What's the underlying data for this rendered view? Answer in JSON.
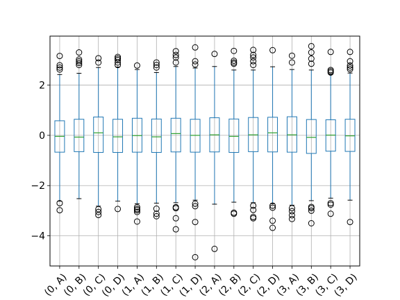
{
  "chart_data": {
    "type": "boxplot",
    "grid": true,
    "ylim": [
      -5.2,
      3.95
    ],
    "yticks": [
      -4,
      -2,
      0,
      2
    ],
    "ytick_labels": [
      "−4",
      "−2",
      "0",
      "2"
    ],
    "colors": {
      "box": "#1f77b4",
      "median": "#2ca02c",
      "grid": "#b0b0b0",
      "flier": "#000000"
    },
    "categories": [
      "(0, A)",
      "(0, B)",
      "(0, C)",
      "(0, D)",
      "(1, A)",
      "(1, B)",
      "(1, C)",
      "(1, D)",
      "(2, A)",
      "(2, B)",
      "(2, C)",
      "(2, D)",
      "(3, A)",
      "(3, B)",
      "(3, C)",
      "(3, D)"
    ],
    "boxes": [
      {
        "q1": -0.67,
        "median": -0.04,
        "q3": 0.58,
        "whisker_low": -2.62,
        "whisker_high": 2.42,
        "fliers": [
          3.16,
          2.79,
          2.7,
          2.62,
          -2.7,
          -2.98
        ]
      },
      {
        "q1": -0.65,
        "median": -0.07,
        "q3": 0.64,
        "whisker_low": -2.52,
        "whisker_high": 2.47,
        "fliers": [
          3.3,
          3.02,
          2.95,
          2.88,
          2.8
        ]
      },
      {
        "q1": -0.68,
        "median": 0.1,
        "q3": 0.73,
        "whisker_low": -2.82,
        "whisker_high": 2.7,
        "fliers": [
          3.07,
          2.9,
          -2.94,
          -3.05,
          -3.17
        ]
      },
      {
        "q1": -0.68,
        "median": -0.06,
        "q3": 0.64,
        "whisker_low": -2.62,
        "whisker_high": 2.72,
        "fliers": [
          3.12,
          3.06,
          3.0,
          2.9,
          2.8,
          -2.93
        ]
      },
      {
        "q1": -0.67,
        "median": -0.01,
        "q3": 0.68,
        "whisker_low": -2.72,
        "whisker_high": 2.62,
        "fliers": [
          2.78,
          -2.86,
          -2.93,
          -2.98,
          -3.05,
          -3.43
        ]
      },
      {
        "q1": -0.68,
        "median": -0.06,
        "q3": 0.65,
        "whisker_low": -2.7,
        "whisker_high": 2.5,
        "fliers": [
          2.9,
          2.8,
          2.7,
          -2.92,
          -3.12,
          -3.22
        ]
      },
      {
        "q1": -0.66,
        "median": 0.07,
        "q3": 0.68,
        "whisker_low": -2.68,
        "whisker_high": 2.74,
        "fliers": [
          3.35,
          3.2,
          3.1,
          2.9,
          -2.86,
          -2.9,
          -3.3,
          -3.74
        ]
      },
      {
        "q1": -0.67,
        "median": 0.0,
        "q3": 0.64,
        "whisker_low": -2.58,
        "whisker_high": 2.68,
        "fliers": [
          3.5,
          2.95,
          2.82,
          -2.72,
          -2.82,
          -3.45,
          -4.85
        ]
      },
      {
        "q1": -0.66,
        "median": 0.02,
        "q3": 0.7,
        "whisker_low": -2.74,
        "whisker_high": 2.74,
        "fliers": [
          3.24,
          -4.52
        ]
      },
      {
        "q1": -0.68,
        "median": -0.04,
        "q3": 0.65,
        "whisker_low": -2.66,
        "whisker_high": 2.6,
        "fliers": [
          3.36,
          2.97,
          2.9,
          2.85,
          -3.08,
          -3.12
        ]
      },
      {
        "q1": -0.65,
        "median": 0.02,
        "q3": 0.71,
        "whisker_low": -2.68,
        "whisker_high": 2.6,
        "fliers": [
          3.4,
          3.2,
          3.1,
          2.95,
          2.8,
          -2.8,
          -2.97,
          -3.25,
          -3.3
        ]
      },
      {
        "q1": -0.66,
        "median": 0.1,
        "q3": 0.72,
        "whisker_low": -2.72,
        "whisker_high": 2.73,
        "fliers": [
          3.39,
          -2.8,
          -2.88,
          -3.4,
          -3.68
        ]
      },
      {
        "q1": -0.67,
        "median": 0.02,
        "q3": 0.74,
        "whisker_low": -2.78,
        "whisker_high": 2.62,
        "fliers": [
          3.17,
          2.9,
          -2.9,
          -3.02,
          -3.18,
          -3.33
        ]
      },
      {
        "q1": -0.72,
        "median": -0.08,
        "q3": 0.63,
        "whisker_low": -2.6,
        "whisker_high": 2.6,
        "fliers": [
          3.55,
          3.3,
          3.05,
          2.85,
          -2.85,
          -2.9,
          -3.0,
          -3.5
        ]
      },
      {
        "q1": -0.63,
        "median": 0.01,
        "q3": 0.62,
        "whisker_low": -2.5,
        "whisker_high": 2.43,
        "fliers": [
          3.32,
          2.6,
          2.55,
          2.5,
          -2.7,
          -2.76,
          -3.12
        ]
      },
      {
        "q1": -0.64,
        "median": -0.02,
        "q3": 0.64,
        "whisker_low": -2.58,
        "whisker_high": 2.48,
        "fliers": [
          3.32,
          2.95,
          2.78,
          2.7,
          2.63,
          -3.45
        ]
      }
    ]
  }
}
